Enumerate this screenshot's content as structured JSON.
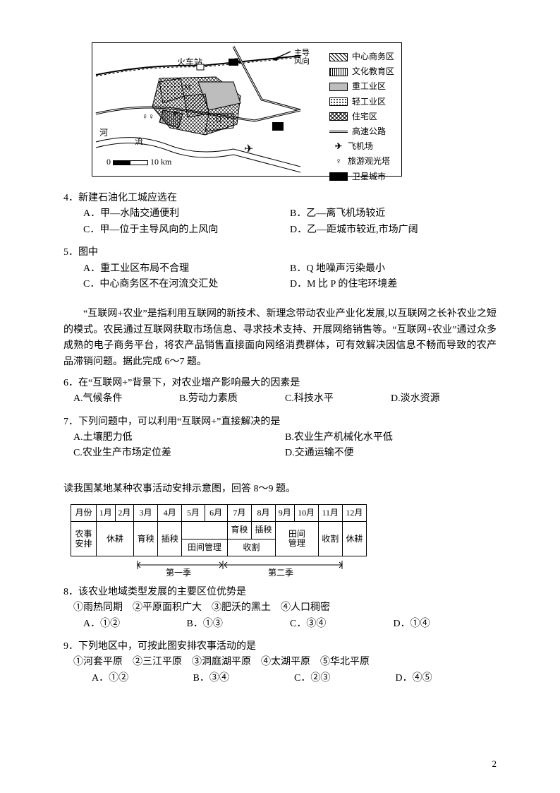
{
  "figure1": {
    "scale_zero": "0",
    "scale_dist": "10 km",
    "station": "火车站",
    "jia": "甲",
    "yi": "乙",
    "river": "河",
    "flow": "流",
    "M": "M",
    "N": "N",
    "P": "P",
    "Q": "Q",
    "wind_label": "主导\n风向",
    "legend": {
      "cbd": "中心商务区",
      "edu": "文化教育区",
      "heavy": "重工业区",
      "light": "轻工业区",
      "res": "住宅区",
      "highway": "高速公路",
      "airport": "飞机场",
      "tower": "旅游观光塔",
      "satellite": "卫星城市"
    }
  },
  "q4": {
    "stem": "4．新建石油化工城应选在",
    "A": "A．甲—水陆交通便利",
    "B": "B．乙—离飞机场较近",
    "C": "C．甲—位于主导风向的上风向",
    "D": "D．乙—距城市较近,市场广阔"
  },
  "q5": {
    "stem": "5．图中",
    "A": "A．重工业区布局不合理",
    "B": "B．Q 地噪声污染最小",
    "C": "C．中心商务区不在河流交汇处",
    "D": "D．M 比 P 的住宅环境差"
  },
  "passage1": "“互联网+农业”是指利用互联网的新技术、新理念带动农业产业化发展,以互联网之长补农业之短的模式。农民通过互联网获取市场信息、寻求技术支持、开展网络销售等。“互联网+农业”通过众多成熟的电子商务平台，将农产品销售直接面向网络消费群体，可有效解决因信息不畅而导致的农产品滞销问题。据此完成 6～7 题。",
  "q6": {
    "stem": "6．在“互联网+”背景下，对农业增产影响最大的因素是",
    "A": "A.气候条件",
    "B": "B.劳动力素质",
    "C": "C.科技水平",
    "D": "D.淡水资源"
  },
  "q7": {
    "stem": "7．下列问题中，可以利用“互联网+”直接解决的是",
    "A": "A.土壤肥力低",
    "B": "B.农业生产机械化水平低",
    "C": "C.农业生产市场定位差",
    "D": "D.交通运输不便"
  },
  "passage2": "读我国某地某种农事活动安排示意图，回答 8～9 题。",
  "table": {
    "header": "月份",
    "months": [
      "1月",
      "2月",
      "3月",
      "4月",
      "5月",
      "6月",
      "7月",
      "8月",
      "9月",
      "10月",
      "11月",
      "12月"
    ],
    "rowlabel": "农事\n安排",
    "cells": {
      "xiugeng1": "休耕",
      "yuyang": "育秧",
      "chayang": "插秧",
      "tianjian1": "田间管理",
      "yuyang2": "育秧",
      "chayang2": "插秧",
      "shouge1": "收割",
      "tianjian2": "田间\n管理",
      "shouge2": "收割",
      "xiugeng2": "休耕"
    },
    "season1": "第一季",
    "season2": "第二季"
  },
  "q8": {
    "stem": "8．该农业地域类型发展的主要区位优势是",
    "items": "①雨热同期　②平原面积广大　③肥沃的黑土　④人口稠密",
    "A": "A．①②",
    "B": "B．①③",
    "C": "C．③④",
    "D": "D．①④"
  },
  "q9": {
    "stem": "9．下列地区中，可按此图安排农事活动的是",
    "items": "①河套平原　②三江平原　③洞庭湖平原　④太湖平原　⑤华北平原",
    "A": "A．①②",
    "B": "B．③④",
    "C": "C．②③",
    "D": "D．④⑤"
  },
  "pagenum": "2"
}
